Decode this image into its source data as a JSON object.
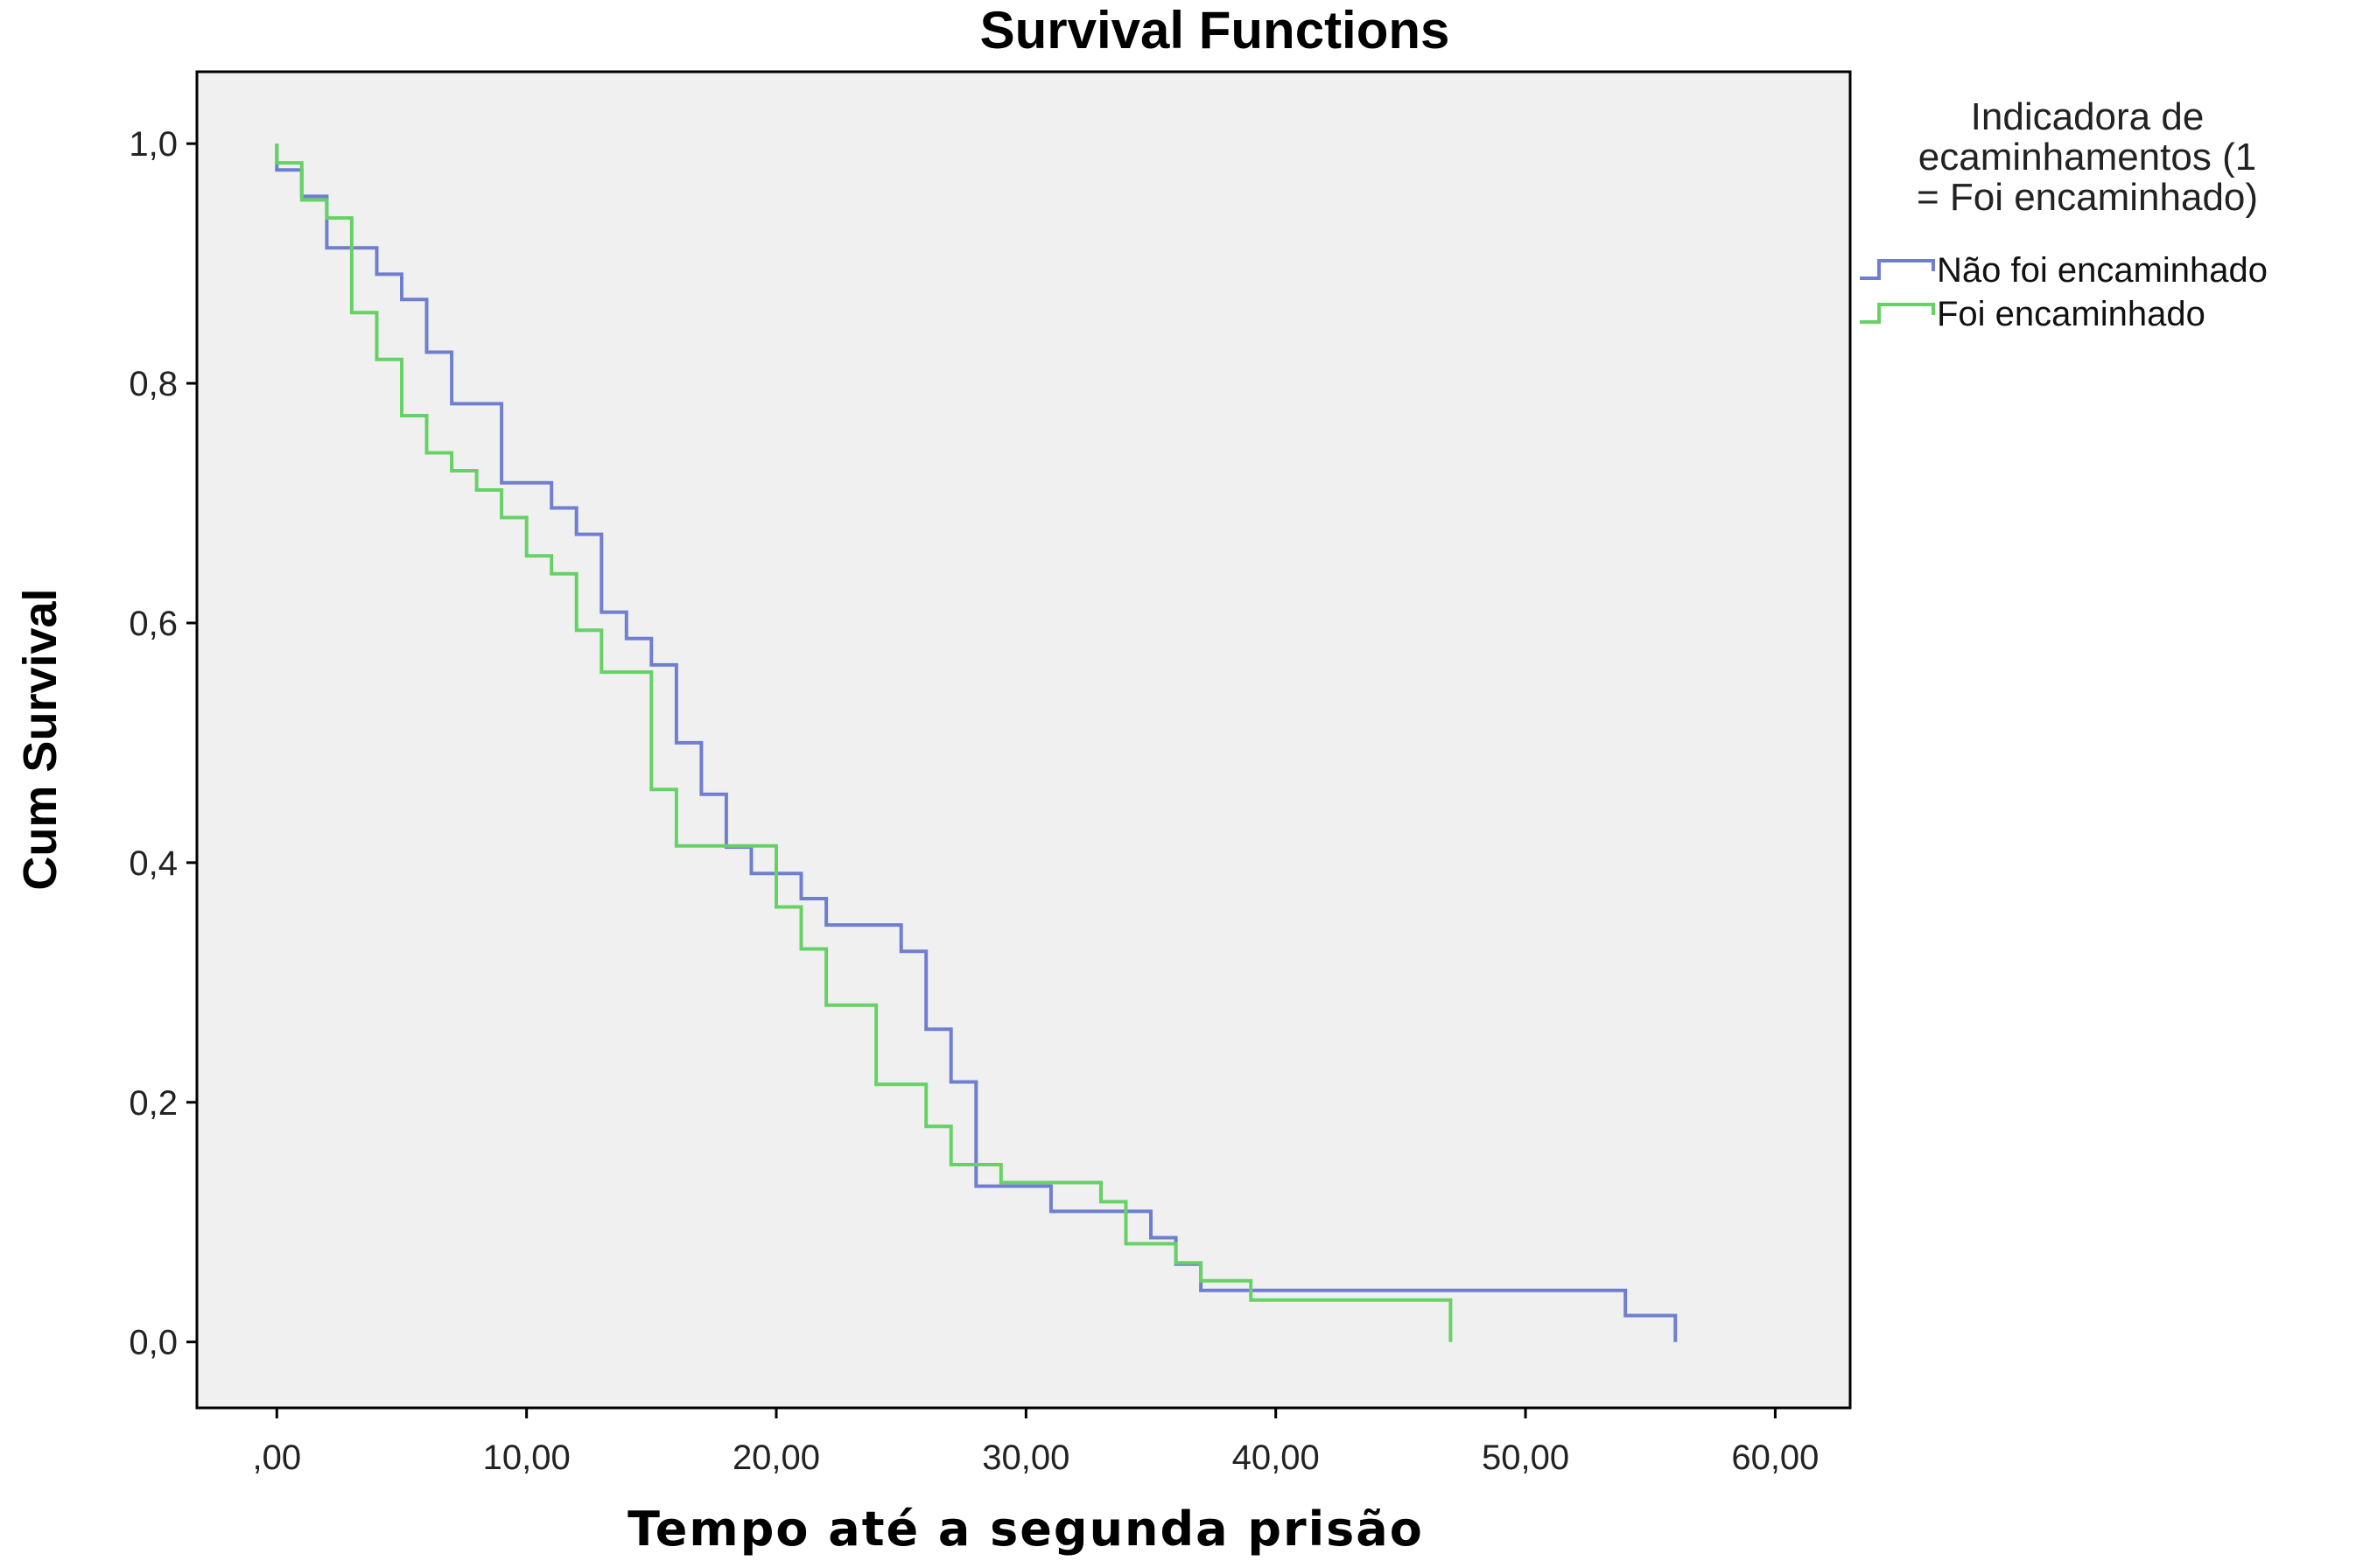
{
  "chart_data": {
    "type": "line",
    "step": true,
    "title": "Survival Functions",
    "xlabel": "Tempo até a segunda prisão",
    "ylabel": "Cum Survival",
    "xlim": [
      -3.2,
      63
    ],
    "ylim": [
      -0.055,
      1.06
    ],
    "xticks": [
      {
        "value": 0,
        "label": ",00"
      },
      {
        "value": 10,
        "label": "10,00"
      },
      {
        "value": 20,
        "label": "20,00"
      },
      {
        "value": 30,
        "label": "30,00"
      },
      {
        "value": 40,
        "label": "40,00"
      },
      {
        "value": 50,
        "label": "50,00"
      },
      {
        "value": 60,
        "label": "60,00"
      }
    ],
    "yticks": [
      {
        "value": 0,
        "label": "0,0"
      },
      {
        "value": 0.2,
        "label": "0,2"
      },
      {
        "value": 0.4,
        "label": "0,4"
      },
      {
        "value": 0.6,
        "label": "0,6"
      },
      {
        "value": 0.8,
        "label": "0,8"
      },
      {
        "value": 1.0,
        "label": "1,0"
      }
    ],
    "grid": false,
    "background": "#f0f0f0",
    "legend": {
      "placement": "right",
      "title_lines": [
        "Indicadora de",
        "ecaminhamentos (1",
        "= Foi encaminhado)"
      ]
    },
    "series": [
      {
        "name": "Não foi encaminhado",
        "color": "#6f7fcf",
        "x": [
          0,
          1,
          2,
          4,
          5,
          6,
          7,
          9,
          11,
          12,
          13,
          14,
          15,
          16,
          17,
          18,
          19,
          21,
          22,
          25,
          26,
          27,
          28,
          31,
          35,
          36,
          37,
          54,
          56
        ],
        "y": [
          0.978,
          0.956,
          0.913,
          0.891,
          0.87,
          0.826,
          0.783,
          0.717,
          0.696,
          0.674,
          0.609,
          0.587,
          0.565,
          0.5,
          0.457,
          0.413,
          0.391,
          0.37,
          0.348,
          0.326,
          0.261,
          0.217,
          0.13,
          0.109,
          0.087,
          0.065,
          0.043,
          0.022,
          0.0
        ]
      },
      {
        "name": "Foi encaminhado",
        "color": "#66d266",
        "x": [
          0,
          1,
          2,
          3,
          4,
          5,
          6,
          7,
          8,
          9,
          10,
          11,
          12,
          13,
          15,
          16,
          18,
          20,
          21,
          22,
          24,
          26,
          27,
          29,
          33,
          34,
          36,
          37,
          39,
          47
        ],
        "y": [
          0.984,
          0.953,
          0.938,
          0.859,
          0.82,
          0.773,
          0.742,
          0.727,
          0.711,
          0.688,
          0.656,
          0.641,
          0.594,
          0.559,
          0.461,
          0.414,
          0.414,
          0.363,
          0.328,
          0.281,
          0.215,
          0.18,
          0.148,
          0.133,
          0.117,
          0.082,
          0.066,
          0.051,
          0.035,
          0.0
        ]
      }
    ]
  }
}
